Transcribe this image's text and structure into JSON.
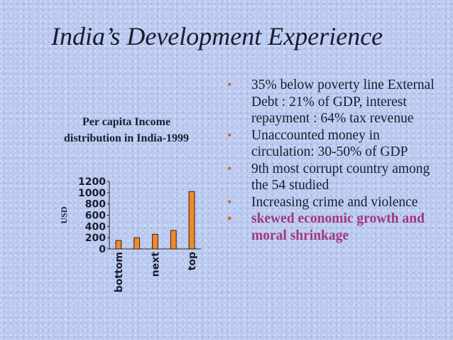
{
  "slide": {
    "title": "India’s Development Experience"
  },
  "bullets": [
    {
      "text": "35% below poverty line External Debt : 21% of GDP, interest repayment : 64% tax revenue"
    },
    {
      "text": "Unaccounted money in circulation: 30-50% of GDP"
    },
    {
      "text": "9th most corrupt country among the 54 studied"
    },
    {
      "text": "Increasing crime and violence"
    },
    {
      "text": "skewed  economic growth and moral shrinkage"
    }
  ],
  "bullet_marker": "•",
  "colors": {
    "title_text": "#1c1c2e",
    "bar_fill": "#f08a2e",
    "bullet_marker": "#d2691e",
    "emphasis_text": "#a2377d"
  },
  "chart_data": {
    "type": "bar",
    "title": "Per capita Income distribution in India-1999",
    "ylabel": "USD",
    "xlabel": "",
    "categories": [
      "bottom",
      "",
      "next",
      "",
      "top"
    ],
    "values": [
      150,
      200,
      260,
      330,
      1020
    ],
    "ylim": [
      0,
      1200
    ],
    "yticks": [
      "0",
      "200",
      "400",
      "600",
      "800",
      "1000",
      "1200"
    ],
    "grid": false,
    "legend": "none"
  }
}
